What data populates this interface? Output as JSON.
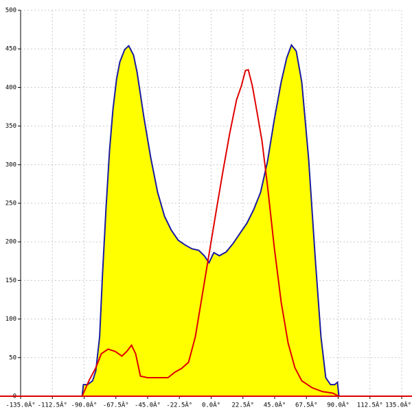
{
  "chart_data": {
    "type": "area-line",
    "xlim": [
      -135,
      135
    ],
    "ylim": [
      0,
      500
    ],
    "xticks": [
      {
        "value": -135,
        "label": "-135.0Â°"
      },
      {
        "value": -112.5,
        "label": "-112.5Â°"
      },
      {
        "value": -90,
        "label": "-90.0Â°"
      },
      {
        "value": -67.5,
        "label": "-67.5Â°"
      },
      {
        "value": -45,
        "label": "-45.0Â°"
      },
      {
        "value": -22.5,
        "label": "-22.5Â°"
      },
      {
        "value": 0,
        "label": "0.0Â°"
      },
      {
        "value": 22.5,
        "label": "22.5Â°"
      },
      {
        "value": 45,
        "label": "45.0Â°"
      },
      {
        "value": 67.5,
        "label": "67.5Â°"
      },
      {
        "value": 90,
        "label": "90.0Â°"
      },
      {
        "value": 112.5,
        "label": "112.5Â°"
      },
      {
        "value": 135,
        "label": "135.0Â°"
      }
    ],
    "yticks": [
      0,
      50,
      100,
      150,
      200,
      250,
      300,
      350,
      400,
      450,
      500
    ],
    "grid": true,
    "series": [
      {
        "color": "#1a1aa0",
        "fill": "#ffff00",
        "x": [
          -91.4,
          -90.5,
          -87.6,
          -84,
          -81.7,
          -79,
          -77,
          -74.4,
          -72,
          -69.6,
          -67,
          -64.7,
          -61.3,
          -58.4,
          -55,
          -52.5,
          -47.7,
          -42.8,
          -37.9,
          -33,
          -28.2,
          -23.3,
          -18.5,
          -13.6,
          -8.8,
          -4.9,
          -1.5,
          1.9,
          5.8,
          10.7,
          15.6,
          20.4,
          25.3,
          30.2,
          35,
          39.9,
          44.7,
          49.6,
          53.5,
          56.9,
          60.3,
          64.2,
          69,
          73.9,
          77.8,
          81.2,
          84.6,
          87.5,
          89.5,
          90.5
        ],
        "values": [
          0,
          15,
          15,
          20,
          33,
          77,
          157,
          246,
          318,
          371,
          411,
          433,
          449,
          454,
          442,
          420,
          362,
          309,
          264,
          233,
          215,
          202,
          196,
          191,
          189,
          182,
          173,
          186,
          182,
          187,
          198,
          211,
          224,
          242,
          264,
          304,
          358,
          407,
          438,
          455,
          447,
          407,
          309,
          175,
          77,
          24,
          15,
          15,
          18,
          0
        ]
      },
      {
        "color": "#e00000",
        "x": [
          -91.4,
          -86.6,
          -81.7,
          -77.8,
          -73,
          -68,
          -63.2,
          -59.8,
          -56.4,
          -53.5,
          -50.1,
          -45.2,
          -37.9,
          -30.6,
          -25.8,
          -20.9,
          -16,
          -11.2,
          -6.3,
          -1.5,
          3.4,
          8.3,
          13.1,
          18,
          21.4,
          24.3,
          26.3,
          29.2,
          32.6,
          36,
          39.9,
          44.7,
          49.6,
          54.5,
          59.3,
          64.2,
          71.5,
          78.8,
          86.1,
          90.5
        ],
        "values": [
          0,
          20,
          37,
          55,
          61,
          58,
          52,
          58,
          66,
          55,
          26,
          24,
          24,
          24,
          31,
          36,
          44,
          77,
          131,
          184,
          238,
          291,
          340,
          384,
          402,
          422,
          423,
          402,
          367,
          331,
          273,
          193,
          122,
          69,
          37,
          20,
          11,
          6,
          4,
          0
        ]
      }
    ]
  }
}
